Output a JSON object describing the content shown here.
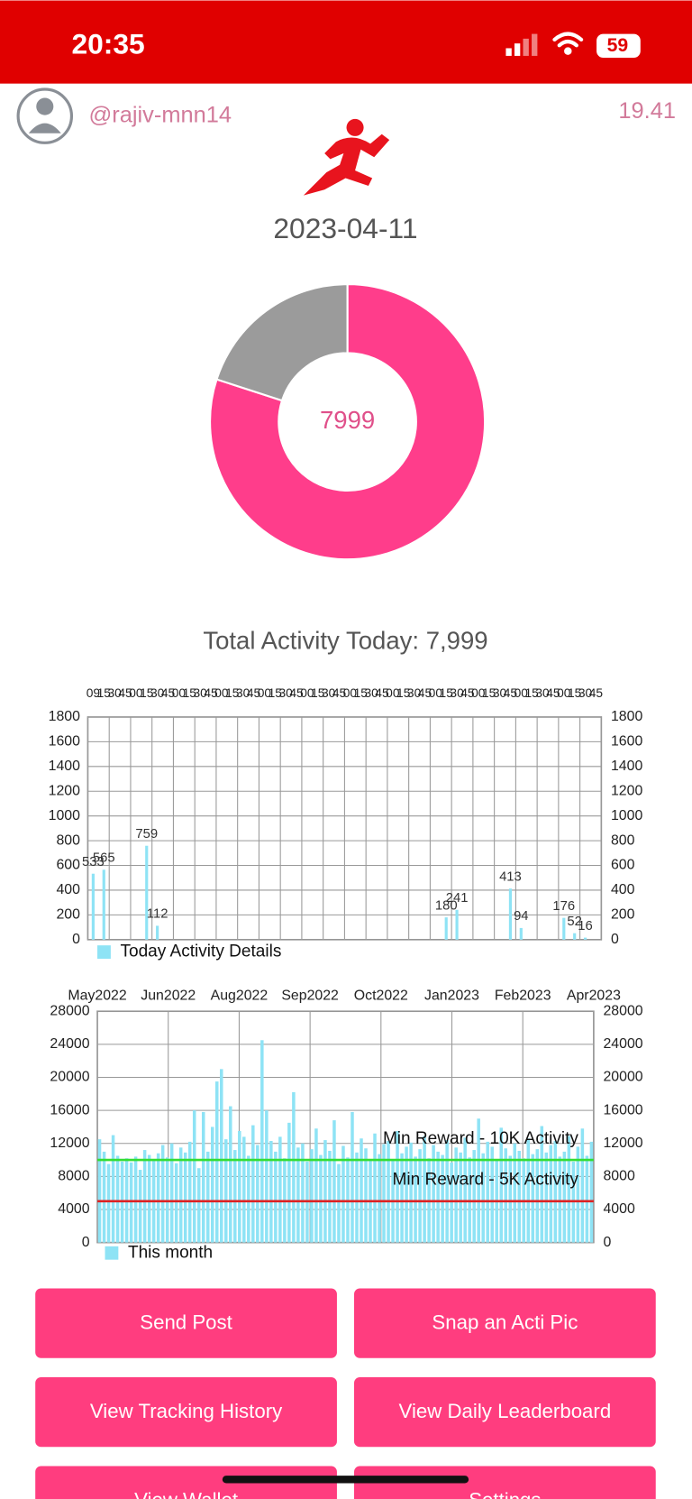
{
  "status_bar": {
    "time": "20:35",
    "battery": "59"
  },
  "header": {
    "username": "@rajiv-mnn14",
    "score": "19.41"
  },
  "date": "2023-04-11",
  "donut": {
    "center_label": "7999",
    "values": [
      7999,
      2001
    ],
    "colors": [
      "#ff3d8b",
      "#9b9b9b"
    ]
  },
  "total_label": "Total Activity Today: 7,999",
  "chart_data": [
    {
      "type": "bar",
      "categories": [
        "09",
        "15",
        "30",
        "45",
        "00",
        "15",
        "30",
        "45",
        "00",
        "15",
        "30",
        "45",
        "00",
        "15",
        "30",
        "45",
        "00",
        "15",
        "30",
        "45",
        "00",
        "15",
        "30",
        "45",
        "00",
        "15",
        "30",
        "45",
        "00",
        "15",
        "30",
        "45",
        "00",
        "15",
        "30",
        "45",
        "00",
        "15",
        "30",
        "45",
        "00",
        "15",
        "30",
        "45",
        "00",
        "15",
        "30",
        "45"
      ],
      "values": [
        533,
        565,
        null,
        null,
        null,
        759,
        112,
        null,
        null,
        null,
        null,
        null,
        null,
        null,
        null,
        null,
        null,
        null,
        null,
        null,
        null,
        null,
        null,
        null,
        null,
        null,
        null,
        null,
        null,
        null,
        null,
        null,
        null,
        180,
        241,
        null,
        null,
        null,
        null,
        413,
        94,
        null,
        null,
        null,
        176,
        52,
        16,
        null
      ],
      "color": "#8ee3f5",
      "ylim": [
        0,
        1800
      ],
      "yticks": [
        0,
        200,
        400,
        600,
        800,
        1000,
        1200,
        1400,
        1600,
        1800
      ],
      "grid": true,
      "legend": "Today Activity Details"
    },
    {
      "type": "bar",
      "x_labels": [
        "May2022",
        "Jun2022",
        "Aug2022",
        "Sep2022",
        "Oct2022",
        "Jan2023",
        "Feb2023",
        "Apr2023"
      ],
      "values": [
        12500,
        11000,
        9500,
        13000,
        10500,
        9800,
        10200,
        9700,
        10400,
        8800,
        11200,
        10600,
        9900,
        10800,
        11800,
        10300,
        12000,
        9600,
        11500,
        10900,
        12200,
        16000,
        9000,
        15800,
        11000,
        14000,
        19500,
        21000,
        12500,
        16500,
        11200,
        13500,
        12800,
        10500,
        14200,
        11800,
        24500,
        16000,
        12300,
        11000,
        12800,
        10200,
        14500,
        18200,
        11500,
        12000,
        9800,
        11300,
        13800,
        10600,
        12400,
        11100,
        14800,
        9500,
        11700,
        10300,
        15800,
        10900,
        12600,
        11400,
        10100,
        13200,
        10700,
        11900,
        12300,
        9900,
        13500,
        10800,
        11600,
        12100,
        10400,
        11300,
        12900,
        10200,
        11800,
        11000,
        10600,
        12400,
        9700,
        11500,
        10900,
        12700,
        10300,
        11200,
        15000,
        10800,
        12200,
        11600,
        9900,
        13900,
        11400,
        10500,
        12000,
        11100,
        10200,
        12600,
        10700,
        11300,
        14100,
        10900,
        11800,
        12300,
        10400,
        11000,
        12900,
        9800,
        11600,
        13800,
        10500,
        12200
      ],
      "color": "#8ee3f5",
      "ylim": [
        0,
        28000
      ],
      "yticks": [
        0,
        4000,
        8000,
        12000,
        16000,
        20000,
        24000,
        28000
      ],
      "grid": true,
      "legend": "This month",
      "reference_lines": [
        {
          "value": 10000,
          "label": "Min Reward - 10K Activity",
          "color": "#33dd33"
        },
        {
          "value": 5000,
          "label": "Min Reward - 5K Activity",
          "color": "#dd2222"
        }
      ]
    }
  ],
  "buttons": [
    "Send Post",
    "Snap an Acti Pic",
    "View Tracking History",
    "View Daily Leaderboard",
    "View Wallet",
    "Settings"
  ]
}
